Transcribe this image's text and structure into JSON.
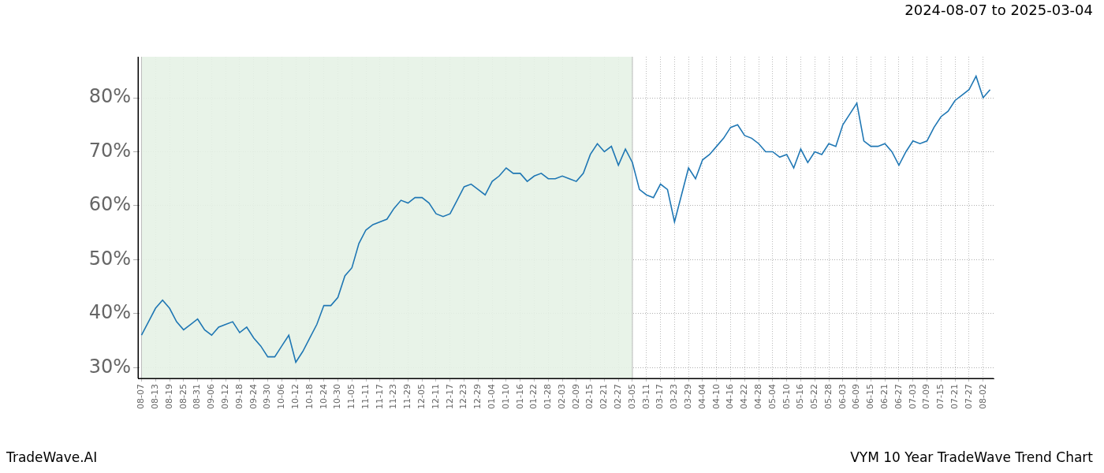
{
  "chart_data": {
    "type": "line",
    "title": "VYM 10 Year TradeWave Trend Chart",
    "subtitle": "2024-08-07 to 2025-03-04",
    "source": "TradeWave.AI",
    "categories": [
      "08-07",
      null,
      "08-13",
      null,
      "08-19",
      null,
      "08-25",
      null,
      "08-31",
      null,
      "09-06",
      null,
      "09-12",
      null,
      "09-18",
      null,
      "09-24",
      null,
      "09-30",
      null,
      "10-06",
      null,
      "10-12",
      null,
      "10-18",
      null,
      "10-24",
      null,
      "10-30",
      null,
      "11-05",
      null,
      "11-11",
      null,
      "11-17",
      null,
      "11-23",
      null,
      "11-29",
      null,
      "12-05",
      null,
      "12-11",
      null,
      "12-17",
      null,
      "12-23",
      null,
      "12-29",
      null,
      "01-04",
      null,
      "01-10",
      null,
      "01-16",
      null,
      "01-22",
      null,
      "01-28",
      null,
      "02-03",
      null,
      "02-09",
      null,
      "02-15",
      null,
      "02-21",
      null,
      "02-27",
      null,
      "03-05",
      null,
      "03-11",
      null,
      "03-17",
      null,
      "03-23",
      null,
      "03-29",
      null,
      "04-04",
      null,
      "04-10",
      null,
      "04-16",
      null,
      "04-22",
      null,
      "04-28",
      null,
      "05-04",
      null,
      "05-10",
      null,
      "05-16",
      null,
      "05-22",
      null,
      "05-28",
      null,
      "06-03",
      null,
      "06-09",
      null,
      "06-15",
      null,
      "06-21",
      null,
      "06-27",
      null,
      "07-03",
      null,
      "07-09",
      null,
      "07-15",
      null,
      "07-21",
      null,
      "07-27",
      null,
      "08-02",
      null
    ],
    "values": [
      36,
      38.5,
      41,
      42.5,
      41,
      38.5,
      37,
      38,
      39,
      37,
      36,
      37.5,
      38,
      38.5,
      36.5,
      37.5,
      35.5,
      34,
      32,
      32,
      34,
      36,
      31,
      33,
      35.5,
      38,
      41.5,
      41.5,
      43,
      47,
      48.5,
      53,
      55.5,
      56.5,
      57,
      57.5,
      59.5,
      61,
      60.5,
      61.5,
      61.5,
      60.5,
      58.5,
      58,
      58.5,
      61,
      63.5,
      64,
      63,
      62,
      64.5,
      65.5,
      67,
      66,
      66,
      64.5,
      65.5,
      66,
      65,
      65,
      65.5,
      65,
      64.5,
      66,
      69.5,
      71.5,
      70,
      71,
      67.5,
      70.5,
      68,
      63,
      62,
      61.5,
      64,
      63,
      57,
      62,
      67,
      65,
      68.5,
      69.5,
      71,
      72.5,
      74.5,
      75,
      73,
      72.5,
      71.5,
      70,
      70,
      69,
      69.5,
      67,
      70.5,
      68,
      70,
      69.5,
      71.5,
      71,
      75,
      77,
      79,
      72,
      71,
      71,
      71.5,
      70,
      67.5,
      70,
      72,
      71.5,
      72,
      74.5,
      76.5,
      77.5,
      79.5,
      80.5,
      81.5,
      84,
      80,
      81.5
    ],
    "color": "#1f77b4",
    "ylim": [
      28,
      87.6
    ],
    "yticks": [
      {
        "value": 30,
        "label": "30%"
      },
      {
        "value": 40,
        "label": "40%"
      },
      {
        "value": 50,
        "label": "50%"
      },
      {
        "value": 60,
        "label": "60%"
      },
      {
        "value": 70,
        "label": "70%"
      },
      {
        "value": 80,
        "label": "80%"
      }
    ],
    "grid": true,
    "highlight": {
      "start": "08-07",
      "end": "03-05",
      "color": "#e6f2e6"
    }
  }
}
